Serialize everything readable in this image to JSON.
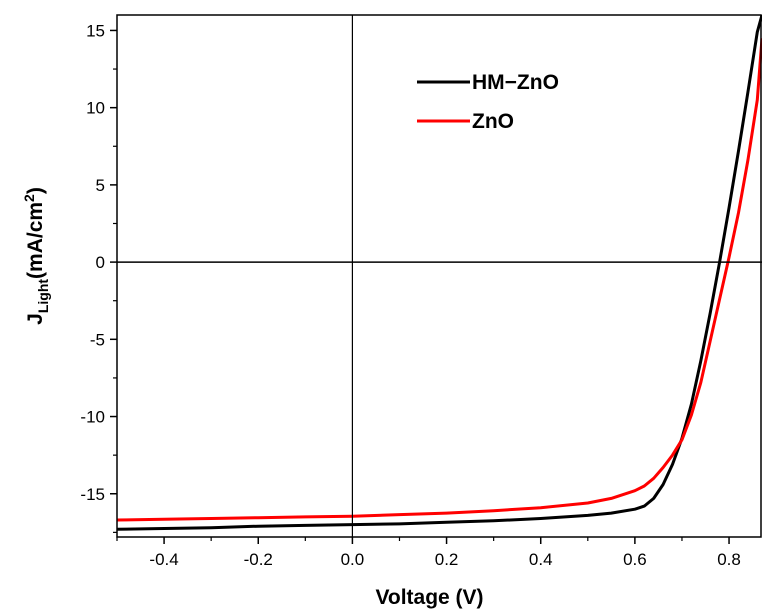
{
  "chart_data": {
    "type": "line",
    "xlabel": "Voltage (V)",
    "ylabel": {
      "main": "J",
      "subscript": "Light",
      "unit_open": "(mA/cm",
      "superscript": "2",
      "unit_close": ")"
    },
    "xlim": [
      -0.5,
      0.87
    ],
    "ylim": [
      -17.8,
      16
    ],
    "xticks": [
      -0.4,
      -0.2,
      0.0,
      0.2,
      0.4,
      0.6,
      0.8
    ],
    "xtick_labels": [
      "-0.4",
      "-0.2",
      "0.0",
      "0.2",
      "0.4",
      "0.6",
      "0.8"
    ],
    "yticks": [
      15,
      10,
      5,
      0,
      -5,
      -10,
      -15
    ],
    "ytick_labels": [
      "15",
      "10",
      "5",
      "0",
      "-5",
      "-10",
      "-15"
    ],
    "reference_lines": {
      "x": 0,
      "y": 0
    },
    "grid": false,
    "legend_position": "top-right",
    "series": [
      {
        "name": "HM−ZnO",
        "color": "#000000",
        "x": [
          -0.5,
          -0.4,
          -0.3,
          -0.2,
          -0.1,
          0.0,
          0.1,
          0.2,
          0.3,
          0.4,
          0.5,
          0.55,
          0.6,
          0.62,
          0.64,
          0.66,
          0.68,
          0.7,
          0.72,
          0.74,
          0.76,
          0.78,
          0.8,
          0.82,
          0.84,
          0.86,
          0.87
        ],
        "y": [
          -17.3,
          -17.25,
          -17.2,
          -17.1,
          -17.05,
          -17.0,
          -16.95,
          -16.85,
          -16.75,
          -16.6,
          -16.4,
          -16.25,
          -16.0,
          -15.8,
          -15.3,
          -14.4,
          -13.1,
          -11.4,
          -9.2,
          -6.4,
          -3.3,
          0.0,
          3.5,
          7.2,
          11.0,
          14.9,
          16.0
        ]
      },
      {
        "name": "ZnO",
        "color": "#ff0000",
        "x": [
          -0.5,
          -0.4,
          -0.3,
          -0.2,
          -0.1,
          0.0,
          0.1,
          0.2,
          0.3,
          0.4,
          0.5,
          0.55,
          0.6,
          0.62,
          0.64,
          0.66,
          0.68,
          0.7,
          0.72,
          0.74,
          0.76,
          0.78,
          0.8,
          0.82,
          0.84,
          0.86,
          0.87
        ],
        "y": [
          -16.7,
          -16.65,
          -16.6,
          -16.55,
          -16.5,
          -16.45,
          -16.35,
          -16.25,
          -16.1,
          -15.9,
          -15.6,
          -15.3,
          -14.8,
          -14.5,
          -14.0,
          -13.3,
          -12.5,
          -11.5,
          -9.9,
          -7.8,
          -5.1,
          -2.4,
          0.3,
          3.2,
          6.6,
          10.5,
          14.5
        ]
      }
    ]
  }
}
